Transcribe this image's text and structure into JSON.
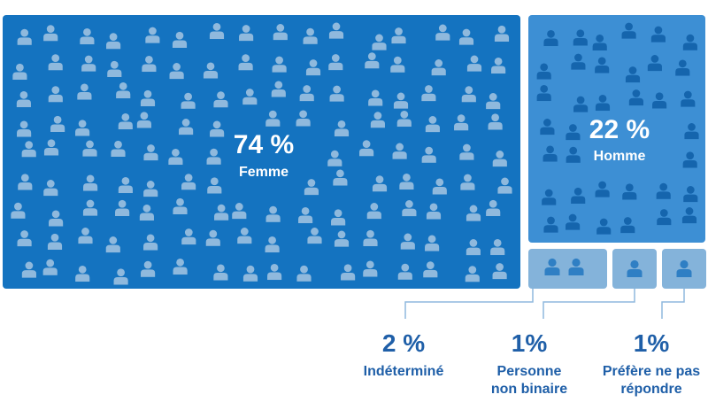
{
  "colors": {
    "femme_fill": "#1473c0",
    "homme_fill": "#3d8fd4",
    "small_fill": "#84b3da",
    "icon_on_dark": "#8fb9dd",
    "icon_on_mid": "#1565ad",
    "icon_on_light": "#2f7fc4",
    "label_text": "#1f5fa8",
    "connector": "#8fb9dd"
  },
  "chart_data": {
    "type": "treemap",
    "categories": [
      "Femme",
      "Homme",
      "Indéterminé",
      "Personne non binaire",
      "Préfère ne pas répondre"
    ],
    "values": [
      74,
      22,
      2,
      1,
      1
    ],
    "unit": "%",
    "labels": {
      "femme": {
        "pct": "74 %",
        "name": "Femme"
      },
      "homme": {
        "pct": "22 %",
        "name": "Homme"
      },
      "indetermine": {
        "pct": "2 %",
        "name": "Indéterminé"
      },
      "nonbinaire": {
        "pct": "1%",
        "name_line1": "Personne",
        "name_line2": "non binaire"
      },
      "prefere": {
        "pct": "1%",
        "name_line1": "Préfère ne pas",
        "name_line2": "répondre"
      }
    },
    "icon_names": {
      "person": "person-icon"
    }
  }
}
